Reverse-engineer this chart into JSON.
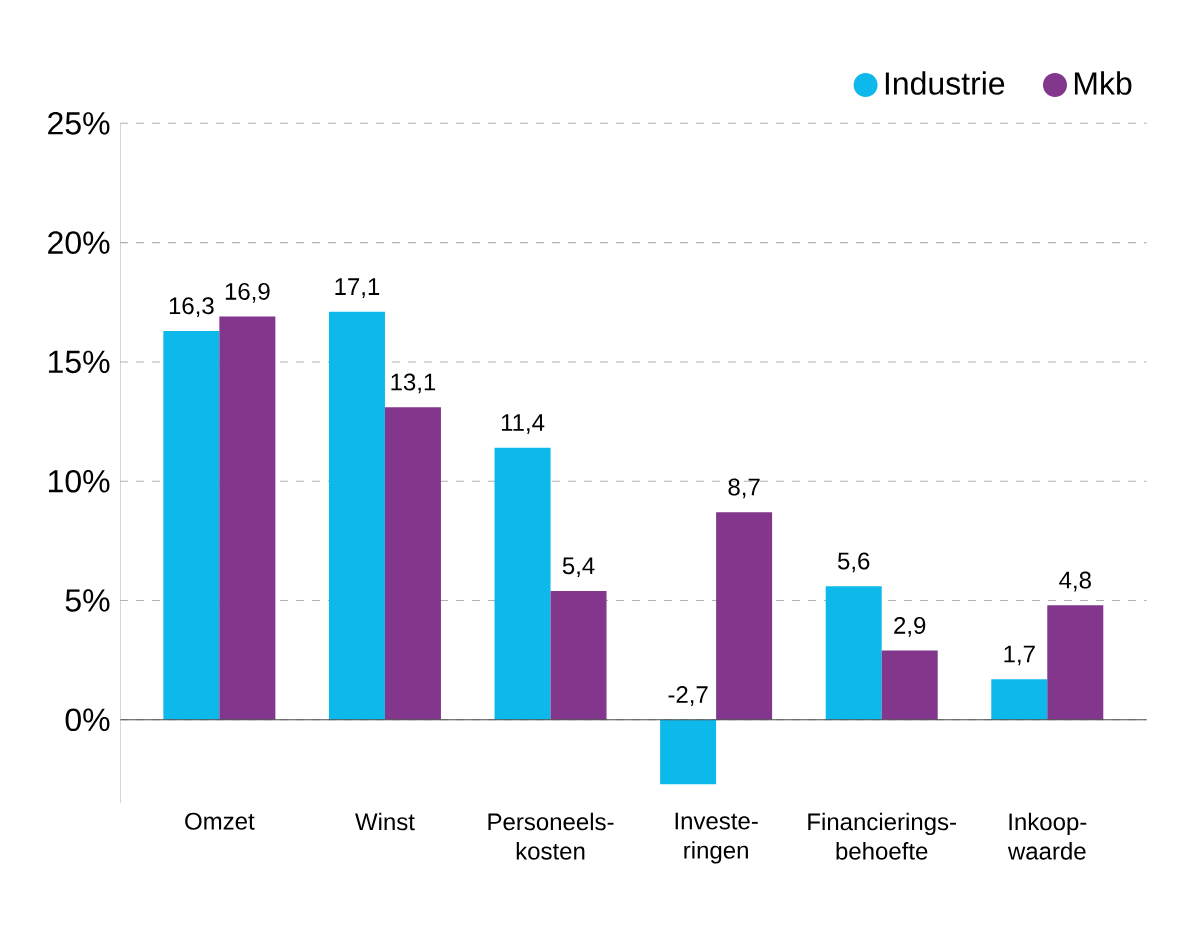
{
  "chart_data": {
    "type": "bar",
    "categories": [
      "Omzet",
      "Winst",
      "Personeels- kosten",
      "Investe- ringen",
      "Financierings- behoefte",
      "Inkoop- waarde"
    ],
    "series": [
      {
        "name": "Industrie",
        "color": "#0db8ea",
        "values": [
          16.3,
          17.1,
          11.4,
          -2.7,
          5.6,
          1.7
        ],
        "value_labels": [
          "16,3",
          "17,1",
          "11,4",
          "-2,7",
          "5,6",
          "1,7"
        ]
      },
      {
        "name": "Mkb",
        "color": "#82368c",
        "values": [
          16.9,
          13.1,
          5.4,
          8.7,
          2.9,
          4.8
        ],
        "value_labels": [
          "16,9",
          "13,1",
          "5,4",
          "8,7",
          "2,9",
          "4,8"
        ]
      }
    ],
    "ylim": [
      -3.5,
      25
    ],
    "yticks": [
      {
        "value": 0,
        "label": "0%"
      },
      {
        "value": 5,
        "label": "5%"
      },
      {
        "value": 10,
        "label": "10%"
      },
      {
        "value": 15,
        "label": "15%"
      },
      {
        "value": 20,
        "label": "20%"
      },
      {
        "value": 25,
        "label": "25%"
      }
    ],
    "grid": "y",
    "legend": "top right"
  }
}
